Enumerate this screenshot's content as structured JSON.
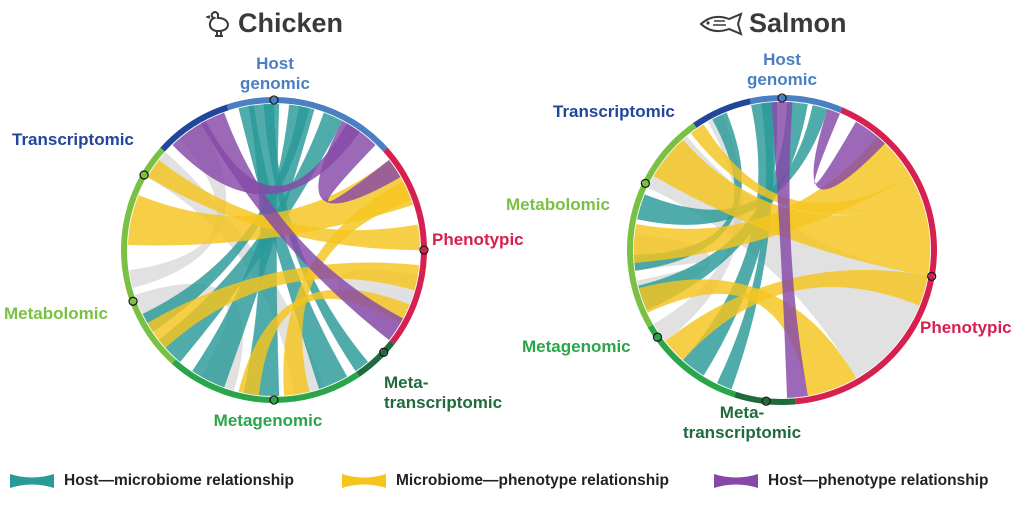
{
  "diagrams": [
    {
      "title": "Chicken",
      "icon": "chicken-icon",
      "labels": {
        "host_genomic": "Host\ngenomic",
        "transcriptomic": "Transcriptomic",
        "metabolomic": "Metabolomic",
        "metagenomic": "Metagenomic",
        "metatranscriptomic": "Meta-\ntranscriptomic",
        "phenotypic": "Phenotypic"
      }
    },
    {
      "title": "Salmon",
      "icon": "salmon-icon",
      "labels": {
        "host_genomic": "Host\ngenomic",
        "transcriptomic": "Transcriptomic",
        "metabolomic": "Metabolomic",
        "metagenomic": "Metagenomic",
        "metatranscriptomic": "Meta-\ntranscriptomic",
        "phenotypic": "Phenotypic"
      }
    }
  ],
  "legend": [
    {
      "label": "Host—microbiome relationship",
      "color": "#2a9a98"
    },
    {
      "label": "Microbiome—phenotype relationship",
      "color": "#f5c51e"
    },
    {
      "label": "Host—phenotype relationship",
      "color": "#8648a8"
    }
  ],
  "colors": {
    "host_microbiome": "#2a9a98",
    "microbiome_phenotype": "#f5c51e",
    "host_phenotype": "#8648a8",
    "other": "#c9c9c9",
    "host_genomic": "#4a7fc1",
    "transcriptomic": "#22479a",
    "metabolomic": "#7ac143",
    "metagenomic": "#2aa54a",
    "metatranscriptomic": "#1f6b3c",
    "phenotypic": "#d62050"
  }
}
